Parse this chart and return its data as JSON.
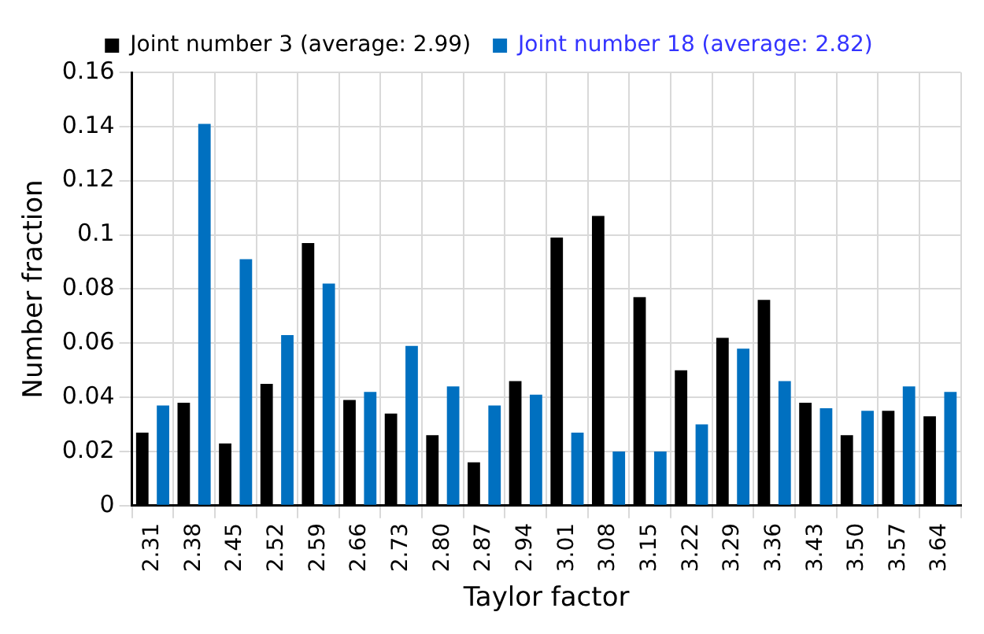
{
  "chart_data": {
    "type": "bar",
    "xlabel": "Taylor factor",
    "ylabel": "Number fraction",
    "categories": [
      "2.31",
      "2.38",
      "2.45",
      "2.52",
      "2.59",
      "2.66",
      "2.73",
      "2.80",
      "2.87",
      "2.94",
      "3.01",
      "3.08",
      "3.15",
      "3.22",
      "3.29",
      "3.36",
      "3.43",
      "3.50",
      "3.57",
      "3.64"
    ],
    "series": [
      {
        "name": "Joint number 3 (average: 2.99)",
        "color": "#000000",
        "values": [
          0.027,
          0.038,
          0.023,
          0.045,
          0.097,
          0.039,
          0.034,
          0.026,
          0.016,
          0.046,
          0.099,
          0.107,
          0.077,
          0.05,
          0.062,
          0.076,
          0.038,
          0.026,
          0.035,
          0.033
        ]
      },
      {
        "name": "Joint number 18 (average: 2.82)",
        "color": "#0070c0",
        "values": [
          0.037,
          0.141,
          0.091,
          0.063,
          0.082,
          0.042,
          0.059,
          0.044,
          0.037,
          0.041,
          0.027,
          0.02,
          0.02,
          0.03,
          0.058,
          0.046,
          0.036,
          0.035,
          0.044,
          0.042
        ]
      }
    ],
    "ylim": [
      0,
      0.16
    ],
    "yticks": [
      0,
      0.02,
      0.04,
      0.06,
      0.08,
      {
        "value": 0.1,
        "label": "0.1"
      },
      0.12,
      0.14,
      0.16
    ],
    "grid": true,
    "legend": "top"
  }
}
